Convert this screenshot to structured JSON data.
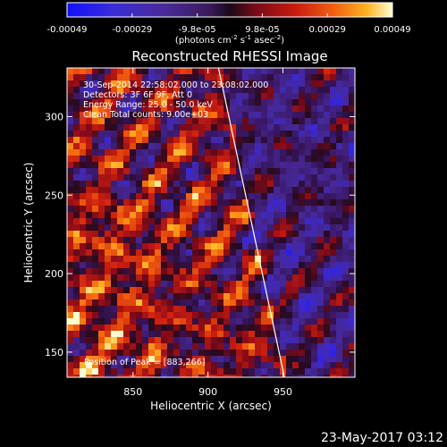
{
  "chart_data": {
    "type": "heatmap",
    "title": "Reconstructed RHESSI Image",
    "xlabel": "Heliocentric X (arcsec)",
    "ylabel": "Heliocentric Y (arcsec)",
    "xlim": [
      806,
      998
    ],
    "ylim": [
      134,
      331
    ],
    "x_ticks": [
      "850",
      "900",
      "950"
    ],
    "y_ticks": [
      "150",
      "200",
      "250",
      "300"
    ],
    "colorbar": {
      "ticks": [
        "-0.00049",
        "-0.00029",
        "-9.8e-05",
        "9.8e-05",
        "0.00029",
        "0.00049"
      ],
      "unit_prefix": "(photons cm",
      "unit_exp1": "-2",
      "unit_mid": " s",
      "unit_exp2": "-1",
      "unit_suffix": " asec",
      "unit_exp3": "-2",
      "unit_close": ")",
      "range": [
        -0.00049,
        0.00049
      ]
    },
    "annotations": [
      "30-Sep-2014 22:58:02.000 to 23:08:02.000",
      "Detectors: 3F 6F 9F, Att 0",
      "Energy Range: 25.0 - 50.0 keV",
      "Clean   Total counts: 9.00e+03"
    ],
    "peak_label": "Position of Peak = [883,266]",
    "limb_line": {
      "x1": 907,
      "y1": 331,
      "x2": 951,
      "y2": 134
    },
    "grid": false,
    "colors": {
      "background": "#000000",
      "text": "#ffffff"
    }
  },
  "footer": {
    "timestamp": "23-May-2017 03:12"
  }
}
